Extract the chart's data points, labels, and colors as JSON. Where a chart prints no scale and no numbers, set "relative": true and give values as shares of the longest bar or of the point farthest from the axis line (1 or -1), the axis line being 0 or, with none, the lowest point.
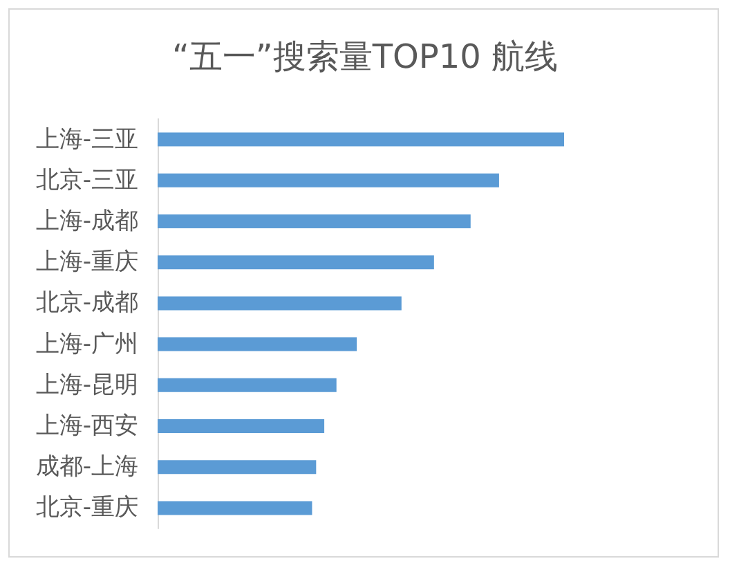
{
  "chart_data": {
    "type": "bar",
    "orientation": "horizontal",
    "relative": true,
    "title": "“五一”搜索量TOP10 航线",
    "categories": [
      "上海-三亚",
      "北京-三亚",
      "上海-成都",
      "上海-重庆",
      "北京-成都",
      "上海-广州",
      "上海-昆明",
      "上海-西安",
      "成都-上海",
      "北京-重庆"
    ],
    "values": [
      1,
      0.84,
      0.77,
      0.68,
      0.6,
      0.49,
      0.44,
      0.41,
      0.39,
      0.38
    ],
    "color": "#5b9bd5"
  }
}
